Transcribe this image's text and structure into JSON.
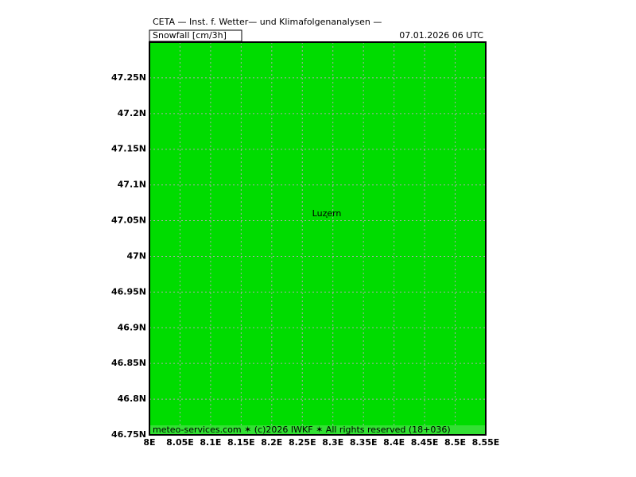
{
  "header": {
    "title": "CETA — Inst. f. Wetter— und Klimafolgenanalysen —",
    "variable": "Snowfall [cm/3h]",
    "valid_time": "07.01.2026 06 UTC"
  },
  "map": {
    "xlim": [
      8,
      8.55
    ],
    "ylim": [
      46.75,
      47.3
    ],
    "xticks": [
      {
        "value": 8,
        "label": "8E"
      },
      {
        "value": 8.05,
        "label": "8.05E"
      },
      {
        "value": 8.1,
        "label": "8.1E"
      },
      {
        "value": 8.15,
        "label": "8.15E"
      },
      {
        "value": 8.2,
        "label": "8.2E"
      },
      {
        "value": 8.25,
        "label": "8.25E"
      },
      {
        "value": 8.3,
        "label": "8.3E"
      },
      {
        "value": 8.35,
        "label": "8.35E"
      },
      {
        "value": 8.4,
        "label": "8.4E"
      },
      {
        "value": 8.45,
        "label": "8.45E"
      },
      {
        "value": 8.5,
        "label": "8.5E"
      },
      {
        "value": 8.55,
        "label": "8.55E"
      }
    ],
    "yticks": [
      {
        "value": 46.75,
        "label": "46.75N"
      },
      {
        "value": 46.8,
        "label": "46.8N"
      },
      {
        "value": 46.85,
        "label": "46.85N"
      },
      {
        "value": 46.9,
        "label": "46.9N"
      },
      {
        "value": 46.95,
        "label": "46.95N"
      },
      {
        "value": 47,
        "label": "47N"
      },
      {
        "value": 47.05,
        "label": "47.05N"
      },
      {
        "value": 47.1,
        "label": "47.1N"
      },
      {
        "value": 47.15,
        "label": "47.15N"
      },
      {
        "value": 47.2,
        "label": "47.2N"
      },
      {
        "value": 47.25,
        "label": "47.25N"
      }
    ],
    "background": "#00dc00",
    "grid": true,
    "places": [
      {
        "name": "Luzern",
        "lon": 8.29,
        "lat": 47.055
      }
    ]
  },
  "footer": "meteo-services.com ✶ (c)2026 IWKF ✶ All rights reserved (18+036)"
}
